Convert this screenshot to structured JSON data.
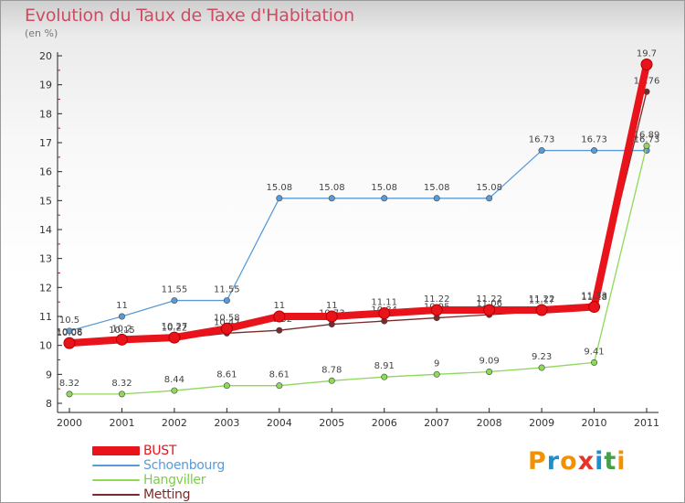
{
  "title": "Evolution du Taux de Taxe d'Habitation",
  "unit": "(en %)",
  "logo": {
    "text": "Proxiti",
    "colors": [
      "#f39200",
      "#1b8fd0",
      "#f39200",
      "#e6332a",
      "#1b8fd0",
      "#43a047",
      "#f39200"
    ]
  },
  "chart_data": {
    "type": "line",
    "x": [
      2000,
      2001,
      2002,
      2003,
      2004,
      2005,
      2006,
      2007,
      2008,
      2009,
      2010,
      2011
    ],
    "ylim": [
      8,
      20
    ],
    "yticks": [
      8,
      9,
      10,
      11,
      12,
      13,
      14,
      15,
      16,
      17,
      18,
      19,
      20
    ],
    "grid": false,
    "legend_position": "bottom-left",
    "series": [
      {
        "name": "Schoenbourg",
        "color": "#5b9bd5",
        "values": [
          10.5,
          11,
          11.55,
          11.55,
          15.08,
          15.08,
          15.08,
          15.08,
          15.08,
          16.73,
          16.73,
          16.73
        ],
        "labels": [
          "10.5",
          "11",
          "11.55",
          "11.55",
          "15.08",
          "15.08",
          "15.08",
          "15.08",
          "15.08",
          "16.73",
          "16.73",
          "16.73"
        ]
      },
      {
        "name": "Hangviller",
        "color": "#8ed85a",
        "values": [
          8.32,
          8.32,
          8.44,
          8.61,
          8.61,
          8.78,
          8.91,
          9,
          9.09,
          9.23,
          9.41,
          16.89
        ],
        "labels": [
          "8.32",
          "8.32",
          "8.44",
          "8.61",
          "8.61",
          "8.78",
          "8.91",
          "9",
          "9.09",
          "9.23",
          "9.41",
          "16.89"
        ]
      },
      {
        "name": "Metting",
        "color": "#7a2a2a",
        "values": [
          10.06,
          10.15,
          10.22,
          10.42,
          10.52,
          10.73,
          10.84,
          10.95,
          11.06,
          11.17,
          11.28,
          18.76
        ],
        "labels": [
          "10.06",
          "10.15",
          "10.22",
          "10.42",
          "10.52",
          "10.73",
          "10.84",
          "10.95",
          "11.06",
          "11.17",
          "11.28",
          "18.76"
        ]
      },
      {
        "name": "BUST",
        "color": "#e8131b",
        "values": [
          10.08,
          10.2,
          10.27,
          10.58,
          11,
          11,
          11.11,
          11.22,
          11.22,
          11.22,
          11.33,
          19.7
        ],
        "labels": [
          "10.08",
          "10.2",
          "10.27",
          "10.58",
          "11",
          "11",
          "11.11",
          "11.22",
          "11.22",
          "11.22",
          "11.33",
          "19.7"
        ]
      }
    ]
  }
}
